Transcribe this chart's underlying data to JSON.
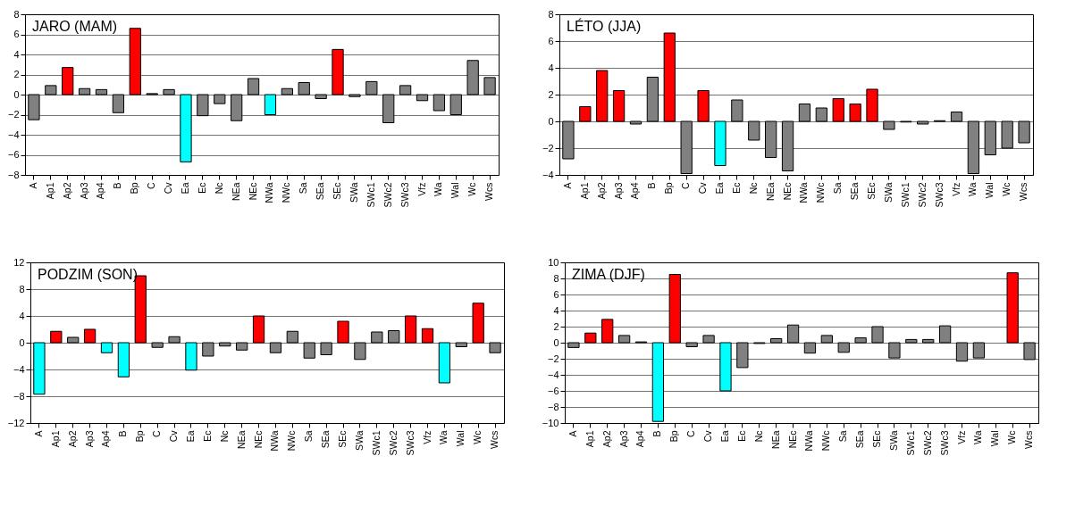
{
  "chart_data": [
    {
      "type": "bar",
      "title": "JARO (MAM)",
      "categories": [
        "A",
        "Ap1",
        "Ap2",
        "Ap3",
        "Ap4",
        "B",
        "Bp",
        "C",
        "Cv",
        "Ea",
        "Ec",
        "Nc",
        "NEa",
        "NEc",
        "NWa",
        "NWc",
        "Sa",
        "SEa",
        "SEc",
        "SWa",
        "SWc1",
        "SWc2",
        "SWc3",
        "Vfz",
        "Wa",
        "Wal",
        "Wc",
        "Wcs"
      ],
      "values": [
        -2.5,
        0.9,
        2.7,
        0.6,
        0.5,
        -1.8,
        6.6,
        0.1,
        0.5,
        -6.7,
        -2.1,
        -0.9,
        -2.6,
        1.6,
        -2.0,
        0.6,
        1.2,
        -0.4,
        4.5,
        -0.2,
        1.3,
        -2.8,
        0.9,
        -0.6,
        -1.6,
        -2.0,
        3.4,
        1.7
      ],
      "colors": [
        "#808080",
        "#808080",
        "#ff0000",
        "#808080",
        "#808080",
        "#808080",
        "#ff0000",
        "#808080",
        "#808080",
        "#00ffff",
        "#808080",
        "#808080",
        "#808080",
        "#808080",
        "#00ffff",
        "#808080",
        "#808080",
        "#808080",
        "#ff0000",
        "#808080",
        "#808080",
        "#808080",
        "#808080",
        "#808080",
        "#808080",
        "#808080",
        "#808080",
        "#808080"
      ],
      "ylim": [
        -8,
        8
      ],
      "yticks": [
        -8,
        -6,
        -4,
        -2,
        0,
        2,
        4,
        6,
        8
      ],
      "grid": "y"
    },
    {
      "type": "bar",
      "title": "LÉTO (JJA)",
      "categories": [
        "A",
        "Ap1",
        "Ap2",
        "Ap3",
        "Ap4",
        "B",
        "Bp",
        "C",
        "Cv",
        "Ea",
        "Ec",
        "Nc",
        "NEa",
        "NEc",
        "NWa",
        "NWc",
        "Sa",
        "SEa",
        "SEc",
        "SWa",
        "SWc1",
        "SWc2",
        "SWc3",
        "Vfz",
        "Wa",
        "Wal",
        "Wc",
        "Wcs"
      ],
      "values": [
        -2.8,
        1.1,
        3.8,
        2.3,
        -0.2,
        3.3,
        6.6,
        -3.9,
        2.3,
        -3.3,
        1.6,
        -1.4,
        -2.7,
        -3.7,
        1.3,
        1.0,
        1.7,
        1.3,
        2.4,
        -0.6,
        -0.05,
        -0.2,
        0.05,
        0.7,
        -3.9,
        -2.5,
        -2.0,
        -1.6
      ],
      "colors": [
        "#808080",
        "#ff0000",
        "#ff0000",
        "#ff0000",
        "#808080",
        "#808080",
        "#ff0000",
        "#808080",
        "#ff0000",
        "#00ffff",
        "#808080",
        "#808080",
        "#808080",
        "#808080",
        "#808080",
        "#808080",
        "#ff0000",
        "#ff0000",
        "#ff0000",
        "#808080",
        "#808080",
        "#808080",
        "#808080",
        "#808080",
        "#808080",
        "#808080",
        "#808080",
        "#808080"
      ],
      "ylim": [
        -4,
        8
      ],
      "yticks": [
        -4,
        -2,
        0,
        2,
        4,
        6,
        8
      ],
      "grid": "y"
    },
    {
      "type": "bar",
      "title": "PODZIM (SON)",
      "categories": [
        "A",
        "Ap1",
        "Ap2",
        "Ap3",
        "Ap4",
        "B",
        "Bp",
        "C",
        "Cv",
        "Ea",
        "Ec",
        "Nc",
        "NEa",
        "NEc",
        "NWa",
        "NWc",
        "Sa",
        "SEa",
        "SEc",
        "SWa",
        "SWc1",
        "SWc2",
        "SWc3",
        "Vfz",
        "Wa",
        "Wal",
        "Wc",
        "Wcs"
      ],
      "values": [
        -7.7,
        1.7,
        0.8,
        2.0,
        -1.5,
        -5.1,
        10.0,
        -0.7,
        0.9,
        -4.1,
        -2.0,
        -0.5,
        -1.1,
        4.0,
        -1.5,
        1.7,
        -2.3,
        -1.8,
        3.2,
        -2.5,
        1.6,
        1.8,
        4.0,
        2.1,
        -6.0,
        -0.6,
        5.9,
        -1.5
      ],
      "colors": [
        "#00ffff",
        "#ff0000",
        "#808080",
        "#ff0000",
        "#00ffff",
        "#00ffff",
        "#ff0000",
        "#808080",
        "#808080",
        "#00ffff",
        "#808080",
        "#808080",
        "#808080",
        "#ff0000",
        "#808080",
        "#808080",
        "#808080",
        "#808080",
        "#ff0000",
        "#808080",
        "#808080",
        "#808080",
        "#ff0000",
        "#ff0000",
        "#00ffff",
        "#808080",
        "#ff0000",
        "#808080"
      ],
      "ylim": [
        -12,
        12
      ],
      "yticks": [
        -12,
        -8,
        -4,
        0,
        4,
        8,
        12
      ],
      "grid": "y"
    },
    {
      "type": "bar",
      "title": "ZIMA (DJF)",
      "categories": [
        "A",
        "Ap1",
        "Ap2",
        "Ap3",
        "Ap4",
        "B",
        "Bp",
        "C",
        "Cv",
        "Ea",
        "Ec",
        "Nc",
        "NEa",
        "NEc",
        "NWa",
        "NWc",
        "Sa",
        "SEa",
        "SEc",
        "SWa",
        "SWc1",
        "SWc2",
        "SWc3",
        "Vfz",
        "Wa",
        "Wal",
        "Wc",
        "Wcs"
      ],
      "values": [
        -0.6,
        1.2,
        2.9,
        0.9,
        0.1,
        -9.8,
        8.5,
        -0.5,
        0.9,
        -6.0,
        -3.1,
        -0.1,
        0.5,
        2.2,
        -1.3,
        0.9,
        -1.2,
        0.6,
        2.0,
        -1.9,
        0.4,
        0.4,
        2.1,
        -2.3,
        -1.9,
        null,
        8.7,
        -2.1
      ],
      "colors": [
        "#808080",
        "#ff0000",
        "#ff0000",
        "#808080",
        "#808080",
        "#00ffff",
        "#ff0000",
        "#808080",
        "#808080",
        "#00ffff",
        "#808080",
        "#808080",
        "#808080",
        "#808080",
        "#808080",
        "#808080",
        "#808080",
        "#808080",
        "#808080",
        "#808080",
        "#808080",
        "#808080",
        "#808080",
        "#808080",
        "#808080",
        "#808080",
        "#ff0000",
        "#808080"
      ],
      "ylim": [
        -10,
        10
      ],
      "yticks": [
        -10,
        -8,
        -6,
        -4,
        -2,
        0,
        2,
        4,
        6,
        8,
        10
      ],
      "grid": "y"
    }
  ]
}
